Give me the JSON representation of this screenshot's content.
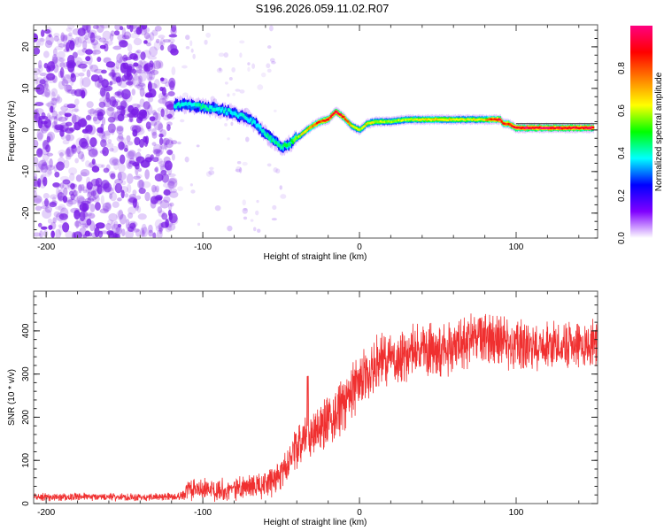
{
  "figure_title": "S196.2026.059.11.02.R07",
  "chart_data": [
    {
      "type": "heatmap",
      "name": "spectrogram",
      "xlabel": "Height of straight line (km)",
      "ylabel": "Frequency (Hz)",
      "xlim": [
        -208,
        152
      ],
      "ylim": [
        -26,
        25.3
      ],
      "xticks": [
        -200,
        -100,
        0,
        100
      ],
      "xtick_labels": [
        "-200",
        "-100",
        "0",
        "100"
      ],
      "yticks": [
        -20,
        -10,
        0,
        10,
        20
      ],
      "ytick_labels": [
        "-20",
        "-10",
        "0",
        "10",
        "20"
      ],
      "colorbar": {
        "label": "Normalized spectral amplitude",
        "range": [
          0.0,
          1.0
        ],
        "ticks": [
          0.0,
          0.2,
          0.4,
          0.6,
          0.8
        ],
        "tick_labels": [
          "0.0",
          "0.2",
          "0.4",
          "0.6",
          "0.8"
        ],
        "colormap": [
          "#ffffff",
          "#8000ff",
          "#0000ff",
          "#00ffff",
          "#00ff00",
          "#ffff00",
          "#ff8000",
          "#ff0000",
          "#ff0080"
        ]
      },
      "ridge": {
        "x": [
          -118,
          -110,
          -100,
          -90,
          -80,
          -70,
          -65,
          -60,
          -55,
          -50,
          -45,
          -40,
          -35,
          -30,
          -25,
          -20,
          -15,
          -10,
          -5,
          0,
          5,
          10,
          20,
          30,
          40,
          50,
          60,
          70,
          80,
          85,
          90,
          92,
          95,
          100,
          110,
          120,
          130,
          140,
          150
        ],
        "y": [
          6,
          6,
          5.5,
          5,
          4,
          2.5,
          1,
          -1,
          -2.5,
          -4,
          -3.5,
          -2,
          -0.5,
          1,
          2,
          2.5,
          4.5,
          3,
          1,
          0,
          1.5,
          2,
          2,
          2.5,
          2.5,
          2.5,
          2.5,
          2.5,
          2.5,
          2.5,
          2.5,
          1.5,
          1.5,
          0.5,
          0.5,
          0.5,
          0.5,
          0.5,
          0.5
        ],
        "amplitude": [
          0.3,
          0.3,
          0.35,
          0.3,
          0.3,
          0.3,
          0.3,
          0.35,
          0.35,
          0.35,
          0.4,
          0.5,
          0.6,
          0.75,
          0.8,
          0.85,
          0.9,
          0.85,
          0.6,
          0.55,
          0.6,
          0.55,
          0.5,
          0.55,
          0.6,
          0.65,
          0.6,
          0.55,
          0.6,
          0.85,
          0.88,
          0.8,
          0.8,
          0.9,
          0.92,
          0.92,
          0.9,
          0.9,
          0.92
        ]
      },
      "noise_region": {
        "x_range": [
          -208,
          -118
        ],
        "y_range": [
          -26,
          25.3
        ],
        "amplitude_range": [
          0.0,
          0.15
        ]
      }
    },
    {
      "type": "line",
      "name": "snr",
      "xlabel": "Height of straight line (km)",
      "ylabel": "SNR (10 * v/v)",
      "xlim": [
        -208,
        152
      ],
      "ylim": [
        0,
        492
      ],
      "xticks": [
        -200,
        -100,
        0,
        100
      ],
      "xtick_labels": [
        "-200",
        "-100",
        "0",
        "100"
      ],
      "yticks": [
        0,
        100,
        200,
        300,
        400
      ],
      "ytick_labels": [
        "0",
        "100",
        "200",
        "300",
        "400"
      ],
      "color": "#f03030",
      "trend": {
        "x": [
          -208,
          -150,
          -115,
          -110,
          -80,
          -60,
          -50,
          -45,
          -40,
          -35,
          -30,
          -20,
          -10,
          0,
          10,
          20,
          40,
          60,
          75,
          90,
          100,
          120,
          150
        ],
        "y": [
          15,
          15,
          16,
          30,
          35,
          40,
          70,
          100,
          130,
          150,
          160,
          190,
          230,
          280,
          320,
          340,
          355,
          360,
          390,
          375,
          365,
          370,
          370
        ]
      },
      "noise_amplitude": {
        "x": [
          -208,
          -115,
          -110,
          -60,
          -45,
          -30,
          0,
          20,
          60,
          100,
          150
        ],
        "y": [
          10,
          10,
          25,
          35,
          50,
          60,
          75,
          70,
          70,
          65,
          60
        ]
      }
    }
  ]
}
